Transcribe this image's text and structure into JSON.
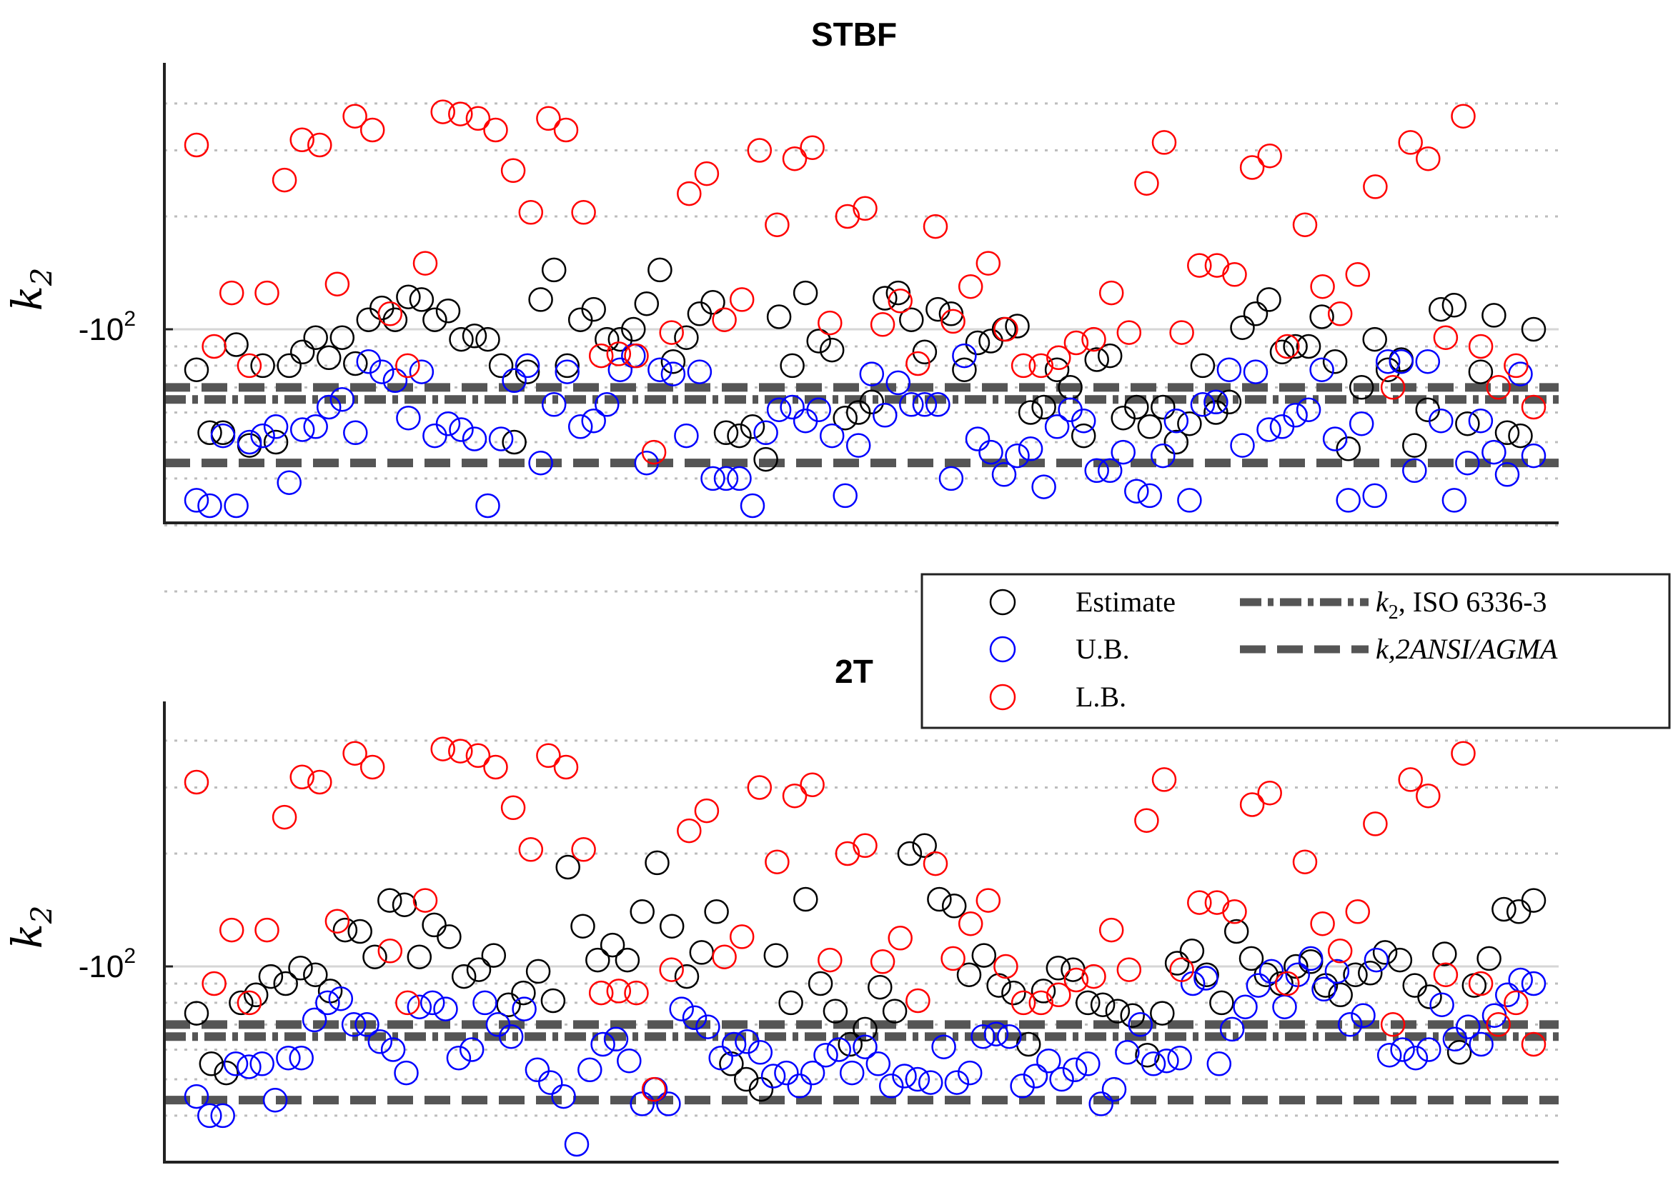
{
  "chart_data": [
    {
      "type": "scatter",
      "title": "STBF",
      "ylabel": "k",
      "ylabel_sub": "2",
      "y_tick_label": "-10",
      "y_tick_exp": "2",
      "series": [
        {
          "name": "Estimate",
          "color": "#000000",
          "values": [
            -78,
            -53,
            -53,
            -91,
            -49,
            -80,
            -50,
            -80,
            -87,
            -95,
            -84,
            -95,
            -81,
            -106,
            -114,
            -106,
            -122,
            -120,
            -106,
            -112,
            -94,
            -96,
            -94,
            -80,
            -50,
            -77,
            -120,
            -144,
            -80,
            -106,
            -113,
            -94,
            -94,
            -100,
            -117,
            -144,
            -82,
            -95,
            -110,
            -118,
            -53,
            -52,
            -55,
            -45,
            -108,
            -80,
            -125,
            -93,
            -88,
            -58,
            -60,
            -64,
            -121,
            -125,
            -106,
            -87,
            -113,
            -110,
            -78,
            -92,
            -93,
            -100,
            -102,
            -60,
            -62,
            -78,
            -70,
            -52,
            -83,
            -85,
            -58,
            -62,
            -55,
            -62,
            -50,
            -56,
            -80,
            -60,
            -64,
            -101,
            -110,
            -120,
            -87,
            -90,
            -90,
            -108,
            -82,
            -48,
            -70,
            -94,
            -78,
            -83,
            -49,
            -61,
            -113,
            -116,
            -56,
            -77,
            -109,
            -53,
            -52,
            -100
          ]
        },
        {
          "name": "U.B.",
          "color": "#0000ff",
          "values": [
            -35,
            -33,
            -52,
            -32,
            -50,
            -52,
            -55,
            -39,
            -54,
            -55,
            -62,
            -65,
            -53,
            -82,
            -77,
            -73,
            -58,
            -77,
            -52,
            -56,
            -54,
            -51,
            -31,
            -51,
            -73,
            -80,
            -44,
            -63,
            -77,
            -55,
            -57,
            -63,
            -78,
            -85,
            -44,
            -78,
            -76,
            -52,
            -77,
            -40,
            -40,
            -40,
            -30,
            -53,
            -61,
            -62,
            -57,
            -61,
            -52,
            -36,
            -49,
            -76,
            -59,
            -72,
            -63,
            -63,
            -63,
            -40,
            -85,
            -51,
            -47,
            -41,
            -46,
            -48,
            -38,
            -55,
            -61,
            -57,
            -42,
            -42,
            -47,
            -37,
            -36,
            -46,
            -57,
            -35,
            -63,
            -64,
            -78,
            -49,
            -77,
            -54,
            -55,
            -59,
            -61,
            -78,
            -51,
            -35,
            -56,
            -36,
            -82,
            -82,
            -42,
            -82,
            -57,
            -35,
            -44,
            -57,
            -47,
            -41,
            -76,
            -46
          ]
        },
        {
          "name": "L.B.",
          "color": "#ff0000",
          "values": [
            -310,
            -90,
            -125,
            -80,
            -125,
            -250,
            -320,
            -310,
            -132,
            -370,
            -340,
            -110,
            -80,
            -150,
            -380,
            -375,
            -365,
            -340,
            -265,
            -205,
            -365,
            -340,
            -205,
            -85,
            -86,
            -85,
            -47,
            -98,
            -230,
            -260,
            -106,
            -120,
            -300,
            -190,
            -285,
            -305,
            -104,
            -200,
            -210,
            -103,
            -119,
            -81,
            -188,
            -105,
            -130,
            -150,
            -100,
            -80,
            -80,
            -84,
            -92,
            -94,
            -125,
            -98,
            -245,
            -315,
            -98,
            -148,
            -148,
            -140,
            -270,
            -290,
            -90,
            -190,
            -130,
            -110,
            -140,
            -240,
            -70,
            -315,
            -285,
            -95,
            -370,
            -90,
            -70,
            -80,
            -62
          ]
        }
      ]
    },
    {
      "type": "scatter",
      "title": "2T",
      "ylabel": "k",
      "ylabel_sub": "2",
      "y_tick_label": "-10",
      "y_tick_exp": "2",
      "series": [
        {
          "name": "Estimate",
          "color": "#000000",
          "values": [
            -75,
            -55,
            -52,
            -80,
            -84,
            -94,
            -90,
            -99,
            -95,
            -86,
            -125,
            -124,
            -106,
            -150,
            -146,
            -106,
            -129,
            -120,
            -94,
            -98,
            -107,
            -79,
            -85,
            -97,
            -81,
            -184,
            -128,
            -104,
            -114,
            -104,
            -140,
            -189,
            -128,
            -94,
            -109,
            -140,
            -55,
            -50,
            -47,
            -107,
            -80,
            -151,
            -90,
            -76,
            -62,
            -68,
            -88,
            -76,
            -200,
            -210,
            -151,
            -145,
            -95,
            -107,
            -89,
            -85,
            -62,
            -86,
            -99,
            -98,
            -80,
            -79,
            -76,
            -74,
            -58,
            -75,
            -102,
            -110,
            -95,
            -80,
            -124,
            -105,
            -95,
            -90,
            -100,
            -103,
            -89,
            -84,
            -95,
            -96,
            -109,
            -104,
            -89,
            -83,
            -108,
            -59,
            -89,
            -105,
            -142,
            -140,
            -150
          ]
        },
        {
          "name": "U.B.",
          "color": "#0000ff",
          "values": [
            -45,
            -40,
            -40,
            -55,
            -54,
            -55,
            -44,
            -57,
            -57,
            -72,
            -80,
            -82,
            -70,
            -70,
            -63,
            -60,
            -52,
            -78,
            -80,
            -77,
            -57,
            -60,
            -80,
            -70,
            -65,
            -77,
            -53,
            -49,
            -45,
            -32,
            -53,
            -62,
            -64,
            -56,
            -43,
            -47,
            -43,
            -77,
            -73,
            -69,
            -57,
            -62,
            -63,
            -59,
            -51,
            -52,
            -48,
            -52,
            -58,
            -60,
            -52,
            -61,
            -55,
            -48,
            -51,
            -50,
            -49,
            -61,
            -49,
            -52,
            -65,
            -66,
            -65,
            -48,
            -51,
            -56,
            -50,
            -53,
            -55,
            -43,
            -47,
            -59,
            -70,
            -55,
            -56,
            -57,
            -90,
            -93,
            -55,
            -68,
            -78,
            -89,
            -97,
            -78,
            -95,
            -105,
            -87,
            -97,
            -70,
            -74,
            -104,
            -58,
            -60,
            -57,
            -60,
            -79,
            -64,
            -69,
            -62,
            -74,
            -84,
            -92,
            -90
          ]
        },
        {
          "name": "L.B.",
          "color": "#ff0000",
          "values": [
            -310,
            -90,
            -125,
            -80,
            -125,
            -250,
            -320,
            -310,
            -132,
            -370,
            -340,
            -110,
            -80,
            -150,
            -380,
            -375,
            -365,
            -340,
            -265,
            -205,
            -365,
            -340,
            -205,
            -85,
            -86,
            -85,
            -47,
            -98,
            -230,
            -260,
            -106,
            -120,
            -300,
            -190,
            -285,
            -305,
            -104,
            -200,
            -210,
            -103,
            -119,
            -81,
            -188,
            -105,
            -130,
            -150,
            -100,
            -80,
            -80,
            -84,
            -92,
            -94,
            -125,
            -98,
            -245,
            -315,
            -98,
            -148,
            -148,
            -140,
            -270,
            -290,
            -90,
            -190,
            -130,
            -110,
            -140,
            -240,
            -70,
            -315,
            -285,
            -95,
            -370,
            -90,
            -70,
            -80,
            -62
          ]
        }
      ]
    }
  ],
  "legend": {
    "items": [
      {
        "label": "Estimate",
        "color": "#000000"
      },
      {
        "label": "U.B.",
        "color": "#0000ff"
      },
      {
        "label": "L.B.",
        "color": "#ff0000"
      }
    ],
    "line_items": [
      {
        "label_math": "k",
        "label_sub": "2",
        "label_rest": ", ISO 6336-3",
        "style": "dashdot",
        "color": "#555555"
      },
      {
        "label_math": "k",
        "label_sub": ",2ANSI/AGMA",
        "label_rest": "",
        "style": "dashed",
        "color": "#555555"
      }
    ]
  },
  "reference_lines": {
    "iso_6336_3": -65,
    "ansi_agma_1": -44,
    "ansi_agma_2": -70
  }
}
